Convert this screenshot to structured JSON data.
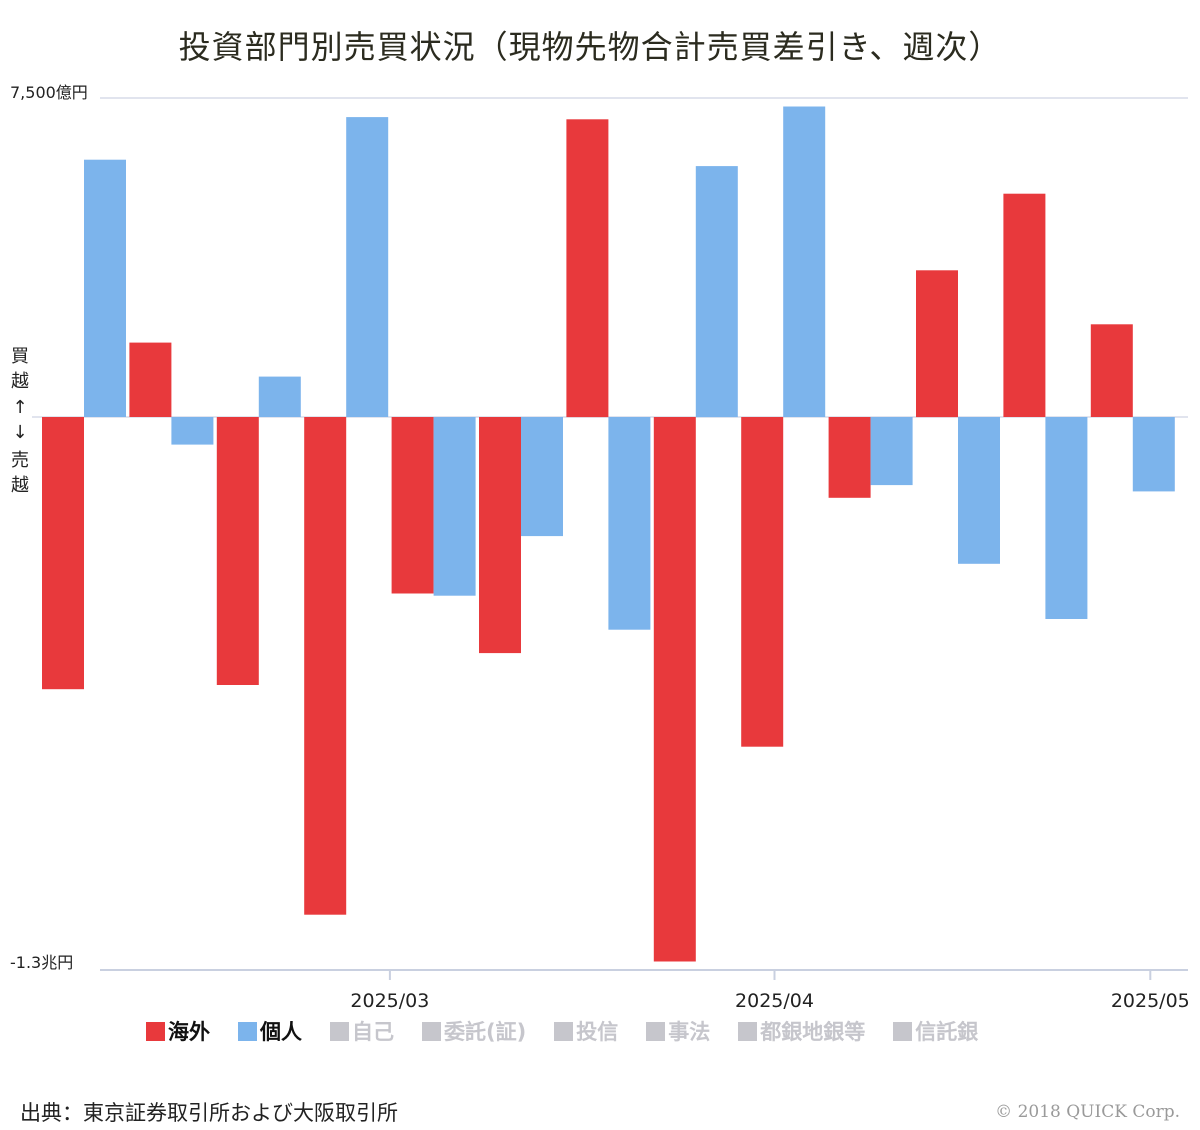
{
  "title": "投資部門別売買状況（現物先物合計売買差引き、週次）",
  "colors": {
    "foreign": "#e8393c",
    "individual": "#7cb4ec",
    "disabled": "#c6c6cc"
  },
  "chart_data": {
    "type": "bar",
    "title": "投資部門別売買状況（現物先物合計売買差引き、週次）",
    "y_axis_max_label": "7,500億円",
    "y_axis_min_label": "-1.3兆円",
    "y_axis_side_label": [
      "買",
      "越",
      "↑",
      "↓",
      "売",
      "越"
    ],
    "ylim": [
      -13000,
      7500
    ],
    "unit": "億円",
    "x_tick_labels": [
      {
        "label": "2025/03",
        "after_week": 3.5
      },
      {
        "label": "2025/04",
        "after_week": 7.9
      },
      {
        "label": "2025/05",
        "after_week": 12.2
      }
    ],
    "grid": "horizontal",
    "legend_position": "bottom",
    "series": [
      {
        "name": "海外",
        "values": [
          -6400,
          1750,
          -6300,
          -11700,
          -4150,
          -5550,
          7000,
          -12800,
          -7750,
          -1900,
          3450,
          5250,
          2180
        ]
      },
      {
        "name": "個人",
        "values": [
          6050,
          -650,
          950,
          7050,
          -4200,
          -2800,
          -5000,
          5900,
          7300,
          -1600,
          -3450,
          -4750,
          -1750
        ]
      }
    ]
  },
  "legend": [
    {
      "label": "海外",
      "active": true
    },
    {
      "label": "個人",
      "active": true
    },
    {
      "label": "自己",
      "active": false
    },
    {
      "label": "委託(証)",
      "active": false
    },
    {
      "label": "投信",
      "active": false
    },
    {
      "label": "事法",
      "active": false
    },
    {
      "label": "都銀地銀等",
      "active": false
    },
    {
      "label": "信託銀",
      "active": false
    }
  ],
  "source": "出典：東京証券取引所および大阪取引所",
  "copyright": "© 2018 QUICK Corp."
}
